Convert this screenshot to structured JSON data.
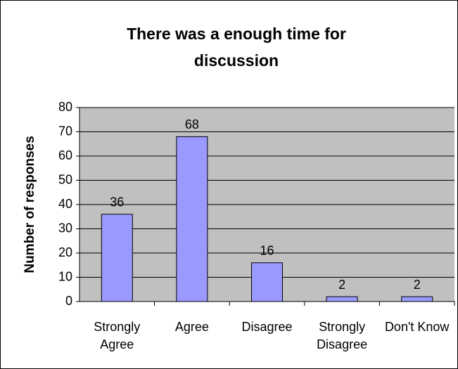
{
  "chart_data": {
    "type": "bar",
    "title": "There was a enough time for discussion",
    "y_label": "Number of responses",
    "categories": [
      "Strongly Agree",
      "Agree",
      "Disagree",
      "Strongly Disagree",
      "Don't Know"
    ],
    "values": [
      36,
      68,
      16,
      2,
      2
    ],
    "color": "#9999ff",
    "ylim": [
      0,
      80
    ],
    "yticks": [
      0,
      10,
      20,
      30,
      40,
      50,
      60,
      70,
      80
    ],
    "grid": true
  }
}
